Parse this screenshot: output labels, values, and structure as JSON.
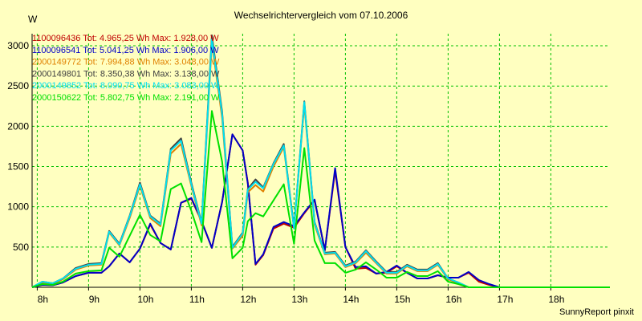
{
  "chart_data": {
    "type": "line",
    "title": "Wechselrichtervergleich vom 07.10.2006",
    "ylabel": "W",
    "xlabel": "",
    "footer": "SunnyReport pinxit",
    "ylim": [
      0,
      3150
    ],
    "yticks": [
      500,
      1000,
      1500,
      2000,
      2500,
      3000
    ],
    "ytick_labels": [
      "500",
      "1000",
      "1500",
      "2000",
      "2500",
      "3000"
    ],
    "xlim": [
      7.9,
      19.15
    ],
    "xticks": [
      8,
      9,
      10,
      11,
      12,
      13,
      14,
      15,
      16,
      17,
      18
    ],
    "xtick_labels": [
      "8h",
      "9h",
      "10h",
      "11h",
      "12h",
      "13h",
      "14h",
      "15h",
      "16h",
      "17h",
      "18h"
    ],
    "grid": true,
    "legend_position": "top-left",
    "x": [
      7.9,
      8.1,
      8.3,
      8.5,
      8.75,
      9.0,
      9.25,
      9.4,
      9.6,
      9.8,
      10.0,
      10.2,
      10.4,
      10.6,
      10.8,
      11.0,
      11.2,
      11.4,
      11.6,
      11.8,
      12.0,
      12.1,
      12.25,
      12.4,
      12.6,
      12.8,
      13.0,
      13.2,
      13.4,
      13.6,
      13.8,
      14.0,
      14.2,
      14.4,
      14.6,
      14.8,
      15.0,
      15.2,
      15.4,
      15.6,
      15.8,
      16.0,
      16.2,
      16.4,
      16.6,
      16.8,
      17.0,
      17.2,
      17.4,
      17.6,
      17.8,
      18.0,
      18.2,
      18.4,
      18.6,
      18.8,
      19.0,
      19.15
    ],
    "series": [
      {
        "name": "1100096436 Tot: 4.965,25 Wh Max: 1.928,00 W",
        "color": "#c00000",
        "values": [
          0,
          30,
          25,
          60,
          140,
          180,
          180,
          260,
          420,
          310,
          480,
          780,
          550,
          470,
          1050,
          1100,
          820,
          490,
          1060,
          1900,
          1700,
          1300,
          280,
          400,
          730,
          790,
          740,
          920,
          1080,
          460,
          1450,
          500,
          230,
          240,
          170,
          180,
          260,
          180,
          110,
          110,
          150,
          120,
          120,
          180,
          70,
          30,
          0,
          0,
          0,
          0,
          0,
          0,
          0,
          0,
          0,
          0,
          0,
          0
        ]
      },
      {
        "name": "1100096541 Tot: 5.041,25 Wh Max: 1.906,00 W",
        "color": "#0000c8",
        "values": [
          0,
          30,
          25,
          60,
          140,
          180,
          180,
          260,
          420,
          310,
          480,
          790,
          550,
          470,
          1050,
          1110,
          820,
          490,
          1060,
          1900,
          1700,
          1290,
          290,
          410,
          750,
          810,
          760,
          930,
          1090,
          460,
          1480,
          500,
          250,
          260,
          170,
          190,
          270,
          180,
          110,
          110,
          150,
          120,
          120,
          190,
          90,
          40,
          0,
          0,
          0,
          0,
          0,
          0,
          0,
          0,
          0,
          0,
          0,
          0
        ]
      },
      {
        "name": "2000149772 Tot: 7.994,88 Wh Max: 3.048,00 W",
        "color": "#e08000",
        "values": [
          0,
          60,
          40,
          100,
          220,
          270,
          280,
          680,
          520,
          860,
          1260,
          860,
          760,
          1660,
          1780,
          1260,
          770,
          3040,
          2100,
          480,
          640,
          1180,
          1270,
          1190,
          1500,
          1740,
          730,
          2270,
          780,
          410,
          420,
          250,
          300,
          430,
          300,
          170,
          170,
          260,
          200,
          200,
          280,
          100,
          50,
          0,
          0,
          0,
          0,
          0,
          0,
          0,
          0,
          0,
          0,
          0,
          0,
          0,
          0,
          0
        ]
      },
      {
        "name": "2000149801 Tot: 8.350,38 Wh Max: 3.138,00 W",
        "color": "#404040",
        "values": [
          0,
          70,
          50,
          110,
          240,
          290,
          300,
          700,
          540,
          890,
          1300,
          890,
          790,
          1720,
          1850,
          1300,
          800,
          3130,
          2180,
          500,
          680,
          1220,
          1340,
          1240,
          1540,
          1780,
          740,
          2310,
          810,
          430,
          440,
          270,
          320,
          460,
          320,
          190,
          190,
          280,
          220,
          220,
          300,
          110,
          60,
          0,
          0,
          0,
          0,
          0,
          0,
          0,
          0,
          0,
          0,
          0,
          0,
          0,
          0,
          0
        ]
      },
      {
        "name": "2000149852 Tot: 8.090,75 Wh Max: 3.083,00 W",
        "color": "#00e0f0",
        "values": [
          0,
          70,
          50,
          110,
          230,
          280,
          290,
          690,
          530,
          880,
          1280,
          880,
          780,
          1700,
          1820,
          1280,
          790,
          3080,
          2150,
          490,
          670,
          1210,
          1310,
          1230,
          1530,
          1760,
          730,
          2300,
          800,
          420,
          430,
          260,
          310,
          450,
          310,
          180,
          180,
          270,
          210,
          210,
          290,
          110,
          60,
          0,
          0,
          0,
          0,
          0,
          0,
          0,
          0,
          0,
          0,
          0,
          0,
          0,
          0,
          0
        ]
      },
      {
        "name": "2000150622 Tot: 5.802,75 Wh Max: 2.191,00 W",
        "color": "#00e000",
        "values": [
          0,
          40,
          30,
          70,
          170,
          200,
          210,
          490,
          380,
          640,
          900,
          650,
          570,
          1220,
          1290,
          950,
          560,
          2190,
          1560,
          360,
          490,
          820,
          920,
          880,
          1080,
          1280,
          540,
          1730,
          580,
          300,
          300,
          180,
          220,
          310,
          220,
          120,
          120,
          190,
          140,
          140,
          200,
          70,
          40,
          0,
          0,
          0,
          0,
          0,
          0,
          0,
          0,
          0,
          0,
          0,
          0,
          0,
          0,
          0
        ]
      }
    ]
  }
}
